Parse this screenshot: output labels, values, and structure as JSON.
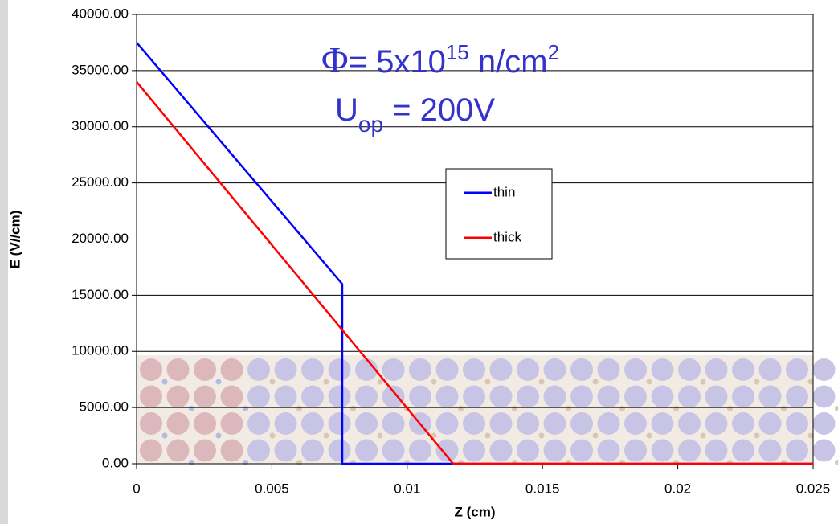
{
  "chart_data": {
    "type": "line",
    "annotations": [
      [
        "Φ",
        "= 5x10",
        "15",
        " n/cm",
        "2"
      ],
      [
        "U",
        "op",
        " = 200V"
      ]
    ],
    "ylabel": "E (V//cm)",
    "xlabel": "Z (cm)",
    "series": [
      {
        "name": "thin",
        "color": "#0000ff",
        "x": [
          0,
          0.0076,
          0.0076,
          0.025
        ],
        "values": [
          37500,
          16000,
          0,
          0
        ]
      },
      {
        "name": "thick",
        "color": "#ff0000",
        "x": [
          0,
          0.0117,
          0.025
        ],
        "values": [
          34000,
          0,
          0
        ]
      }
    ],
    "xlim": [
      0,
      0.025
    ],
    "xticks": [
      0,
      0.005,
      0.01,
      0.015,
      0.02,
      0.025
    ],
    "ylim": [
      0,
      40000
    ],
    "yticks": [
      {
        "value": 0,
        "label": "0.00"
      },
      {
        "value": 5000,
        "label": "5000.00"
      },
      {
        "value": 10000,
        "label": "10000.00"
      },
      {
        "value": 15000,
        "label": "15000.00"
      },
      {
        "value": 20000,
        "label": "20000.00"
      },
      {
        "value": 25000,
        "label": "25000.00"
      },
      {
        "value": 30000,
        "label": "30000.00"
      },
      {
        "value": 35000,
        "label": "35000.00"
      },
      {
        "value": 40000,
        "label": "40000.00"
      }
    ],
    "grid": true
  }
}
